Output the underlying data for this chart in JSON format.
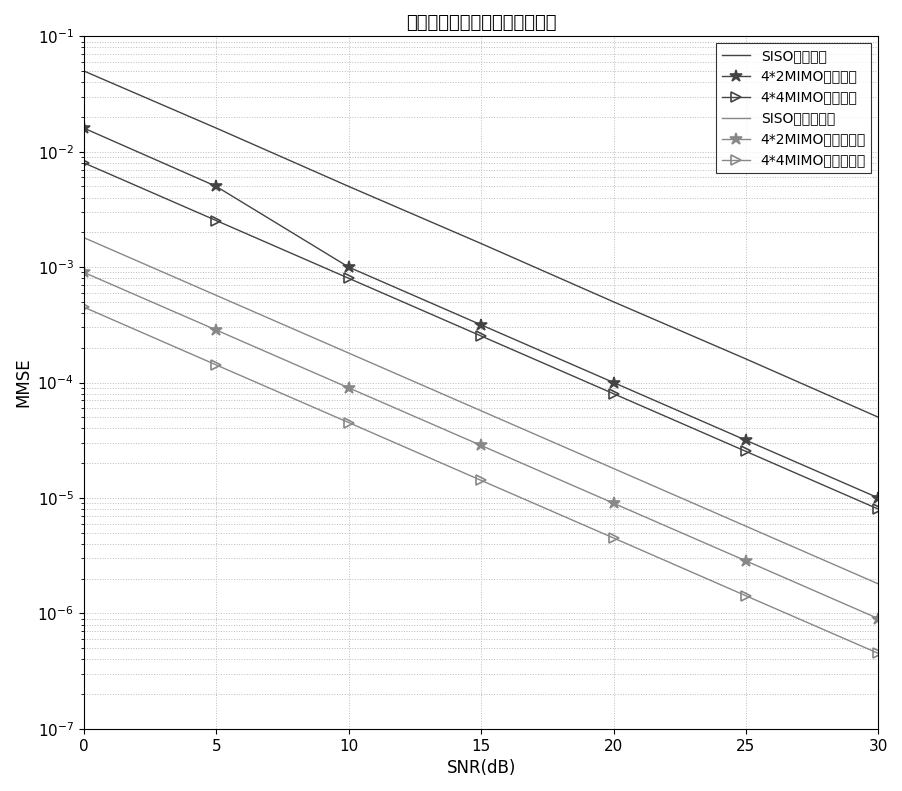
{
  "title": "改进的粗频偏估计算法性能比较",
  "xlabel": "SNR(dB)",
  "ylabel": "MMSE",
  "snr": [
    0,
    5,
    10,
    15,
    20,
    25,
    30
  ],
  "xlim": [
    0,
    30
  ],
  "ylim_log": [
    -7,
    -1
  ],
  "series": [
    {
      "label": "SISO传统方案",
      "marker": "None",
      "color": "#444444",
      "linestyle": "-",
      "linewidth": 1.0,
      "markersize": 7,
      "values": [
        0.05,
        0.016,
        0.005,
        0.0016,
        0.0005,
        0.00016,
        5e-05
      ]
    },
    {
      "label": "4*2MIMO传统方案",
      "marker": "*",
      "color": "#444444",
      "linestyle": "-",
      "linewidth": 1.0,
      "markersize": 9,
      "values": [
        0.016,
        0.005,
        0.001,
        0.000316,
        0.0001,
        3.16e-05,
        1e-05
      ]
    },
    {
      "label": "4*4MIMO传统方案",
      "marker": ">",
      "color": "#444444",
      "linestyle": "-",
      "linewidth": 1.0,
      "markersize": 7,
      "values": [
        0.008,
        0.00253,
        0.0008,
        0.000253,
        8e-05,
        2.53e-05,
        8e-06
      ]
    },
    {
      "label": "SISO本发明方案",
      "marker": "None",
      "color": "#888888",
      "linestyle": "-",
      "linewidth": 1.0,
      "markersize": 7,
      "values": [
        0.0018,
        0.000569,
        0.00018,
        5.69e-05,
        1.8e-05,
        5.69e-06,
        1.8e-06
      ]
    },
    {
      "label": "4*2MIMO本发明方案",
      "marker": "*",
      "color": "#888888",
      "linestyle": "-",
      "linewidth": 1.0,
      "markersize": 9,
      "values": [
        0.0009,
        0.000285,
        9e-05,
        2.85e-05,
        9e-06,
        2.85e-06,
        9e-07
      ]
    },
    {
      "label": "4*4MIMO本发明方案",
      "marker": ">",
      "color": "#888888",
      "linestyle": "-",
      "linewidth": 1.0,
      "markersize": 7,
      "values": [
        0.00045,
        0.000142,
        4.5e-05,
        1.42e-05,
        4.5e-06,
        1.42e-06,
        4.5e-07
      ]
    }
  ],
  "background_color": "#ffffff",
  "grid_color": "#bbbbbb",
  "legend_fontsize": 10,
  "title_fontsize": 13,
  "axis_fontsize": 12,
  "tick_fontsize": 11
}
